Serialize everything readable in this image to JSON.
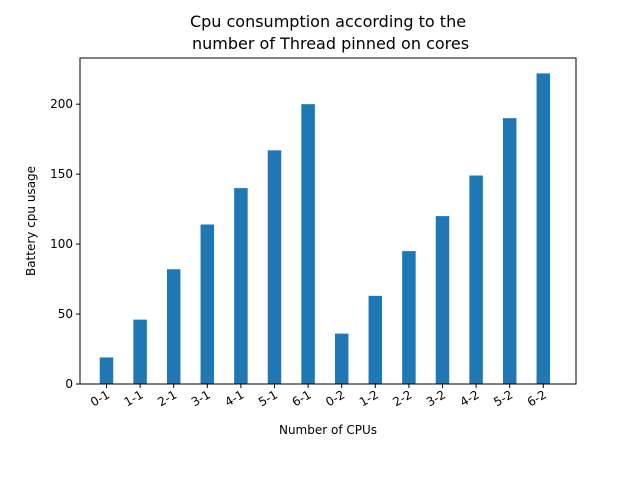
{
  "chart_data": {
    "type": "bar",
    "title_lines": [
      "Cpu consumption according to the",
      " number of Thread pinned on cores"
    ],
    "xlabel": "Number of CPUs",
    "ylabel": "Battery cpu usage",
    "categories": [
      "0-1",
      "1-1",
      "2-1",
      "3-1",
      "4-1",
      "5-1",
      "6-1",
      "0-2",
      "1-2",
      "2-2",
      "3-2",
      "4-2",
      "5-2",
      "6-2"
    ],
    "values": [
      19,
      46,
      82,
      114,
      140,
      167,
      200,
      36,
      63,
      95,
      120,
      149,
      190,
      222
    ],
    "ylim": [
      0,
      233
    ],
    "yticks": [
      0,
      50,
      100,
      150,
      200
    ],
    "grid": false,
    "bar_color": "#1f77b4"
  }
}
